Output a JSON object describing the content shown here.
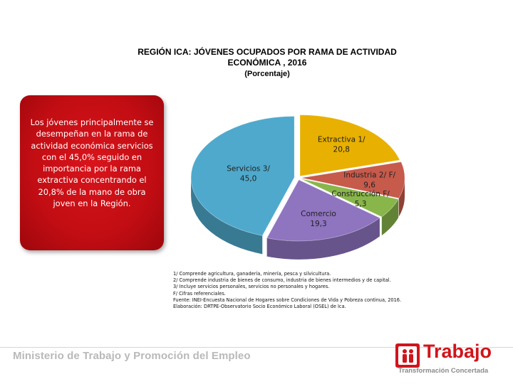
{
  "header": {
    "title_line1": "REGIÓN ICA: JÓVENES OCUPADOS POR RAMA DE ACTIVIDAD",
    "title_line2": "ECONÓMICA , 2016",
    "subtitle": "(Porcentaje)"
  },
  "callout": {
    "text": "Los jóvenes principalmente se desempeñan en la rama de actividad económica servicios con el 45,0% seguido en importancia por la rama extractiva concentrando el 20,8% de la mano de obra joven en la Región."
  },
  "chart_data": {
    "type": "pie",
    "title": "REGIÓN ICA: JÓVENES OCUPADOS POR RAMA DE ACTIVIDAD ECONÓMICA , 2016",
    "subtitle": "(Porcentaje)",
    "categories": [
      "Extractiva 1/",
      "Industria 2/ F/",
      "Construcción F/",
      "Comercio",
      "Servicios 3/"
    ],
    "values": [
      20.8,
      9.6,
      5.3,
      19.3,
      45.0
    ],
    "labels": [
      {
        "name": "Extractiva 1/",
        "value": "20,8"
      },
      {
        "name": "Industria 2/ F/",
        "value": "9,6"
      },
      {
        "name": "Construcción F/",
        "value": "5,3"
      },
      {
        "name": "Comercio",
        "value": "19,3"
      },
      {
        "name": "Servicios 3/",
        "value": "45,0"
      }
    ],
    "colors": [
      "#e8b000",
      "#c65a4b",
      "#88b64a",
      "#8f74c0",
      "#4fa9cc"
    ],
    "style": "3d-tilted"
  },
  "notes": [
    "1/ Comprende agricultura, ganadería, minería, pesca y silvicultura.",
    "2/ Comprende industria de bienes de consumo, industria de bienes intermedios y de capital.",
    "3/ Incluye servicios personales, servicios no personales y hogares.",
    "F/ Cifras referenciales.",
    "Fuente: INEI-Encuesta Nacional de Hogares sobre Condiciones de Vida y Pobreza continua, 2016.",
    "Elaboración: DRTPE-Observatorio Socio Económico Laboral (OSEL) de Ica."
  ],
  "footer": {
    "ministry": "Ministerio de Trabajo y Promoción del Empleo",
    "logo_word": "Trabajo",
    "logo_tagline": "Transformación Concertada",
    "brand_color": "#d1141b"
  }
}
